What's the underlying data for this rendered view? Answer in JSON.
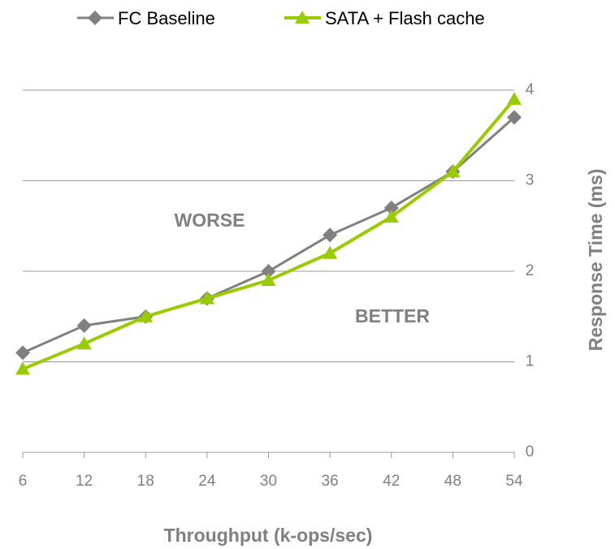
{
  "chart_data": {
    "type": "line",
    "x": [
      6,
      12,
      18,
      24,
      30,
      36,
      42,
      48,
      54
    ],
    "series": [
      {
        "name": "FC Baseline",
        "color": "#808080",
        "marker": "diamond",
        "values": [
          1.1,
          1.4,
          1.5,
          1.7,
          2.0,
          2.4,
          2.7,
          3.1,
          3.7
        ]
      },
      {
        "name": "SATA + Flash cache",
        "color": "#99cc00",
        "marker": "triangle",
        "values": [
          0.92,
          1.2,
          1.5,
          1.7,
          1.9,
          2.2,
          2.6,
          3.1,
          3.9
        ]
      }
    ],
    "xlim": [
      6,
      54
    ],
    "xticks": [
      6,
      12,
      18,
      24,
      30,
      36,
      42,
      48,
      54
    ],
    "ylim": [
      0,
      4
    ],
    "yticks": [
      0,
      1,
      2,
      3,
      4
    ],
    "y_axis_side": "right",
    "grid": true,
    "legend": "top",
    "xlabel": "Throughput (k-ops/sec)",
    "ylabel": "Response Time (ms)",
    "annotations": [
      "WORSE",
      "BETTER"
    ]
  }
}
